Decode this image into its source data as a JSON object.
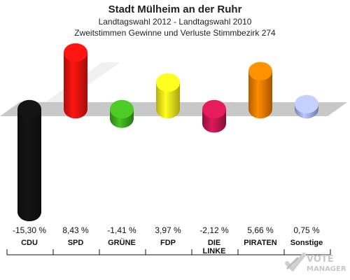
{
  "header": {
    "title": "Stadt Mülheim an der Ruhr",
    "subtitle": "Landtagswahl 2012 - Landtagswahl 2010",
    "subtitle2": "Zweitstimmen Gewinne und Verluste Stimmbezirk 274"
  },
  "logo": {
    "line1": "VOTE",
    "line2": "MANAGER"
  },
  "chart_data": {
    "type": "bar",
    "title": "Stadt Mülheim an der Ruhr",
    "categories": [
      "CDU",
      "SPD",
      "GRÜNE",
      "FDP",
      "DIE LINKE",
      "PIRATEN",
      "Sonstige"
    ],
    "values": [
      -15.3,
      8.43,
      -1.41,
      3.97,
      -2.12,
      5.66,
      0.75
    ],
    "value_labels": [
      "-15,30 %",
      "8,43 %",
      "-1,41 %",
      "3,97 %",
      "-2,12 %",
      "5,66 %",
      "0,75 %"
    ],
    "colors": [
      "#111111",
      "#e8120f",
      "#3faa1e",
      "#f2e81a",
      "#c0174f",
      "#f07a00",
      "#a3aee0"
    ],
    "ylim": [
      -16,
      10
    ],
    "grid": false,
    "legend": "none"
  }
}
